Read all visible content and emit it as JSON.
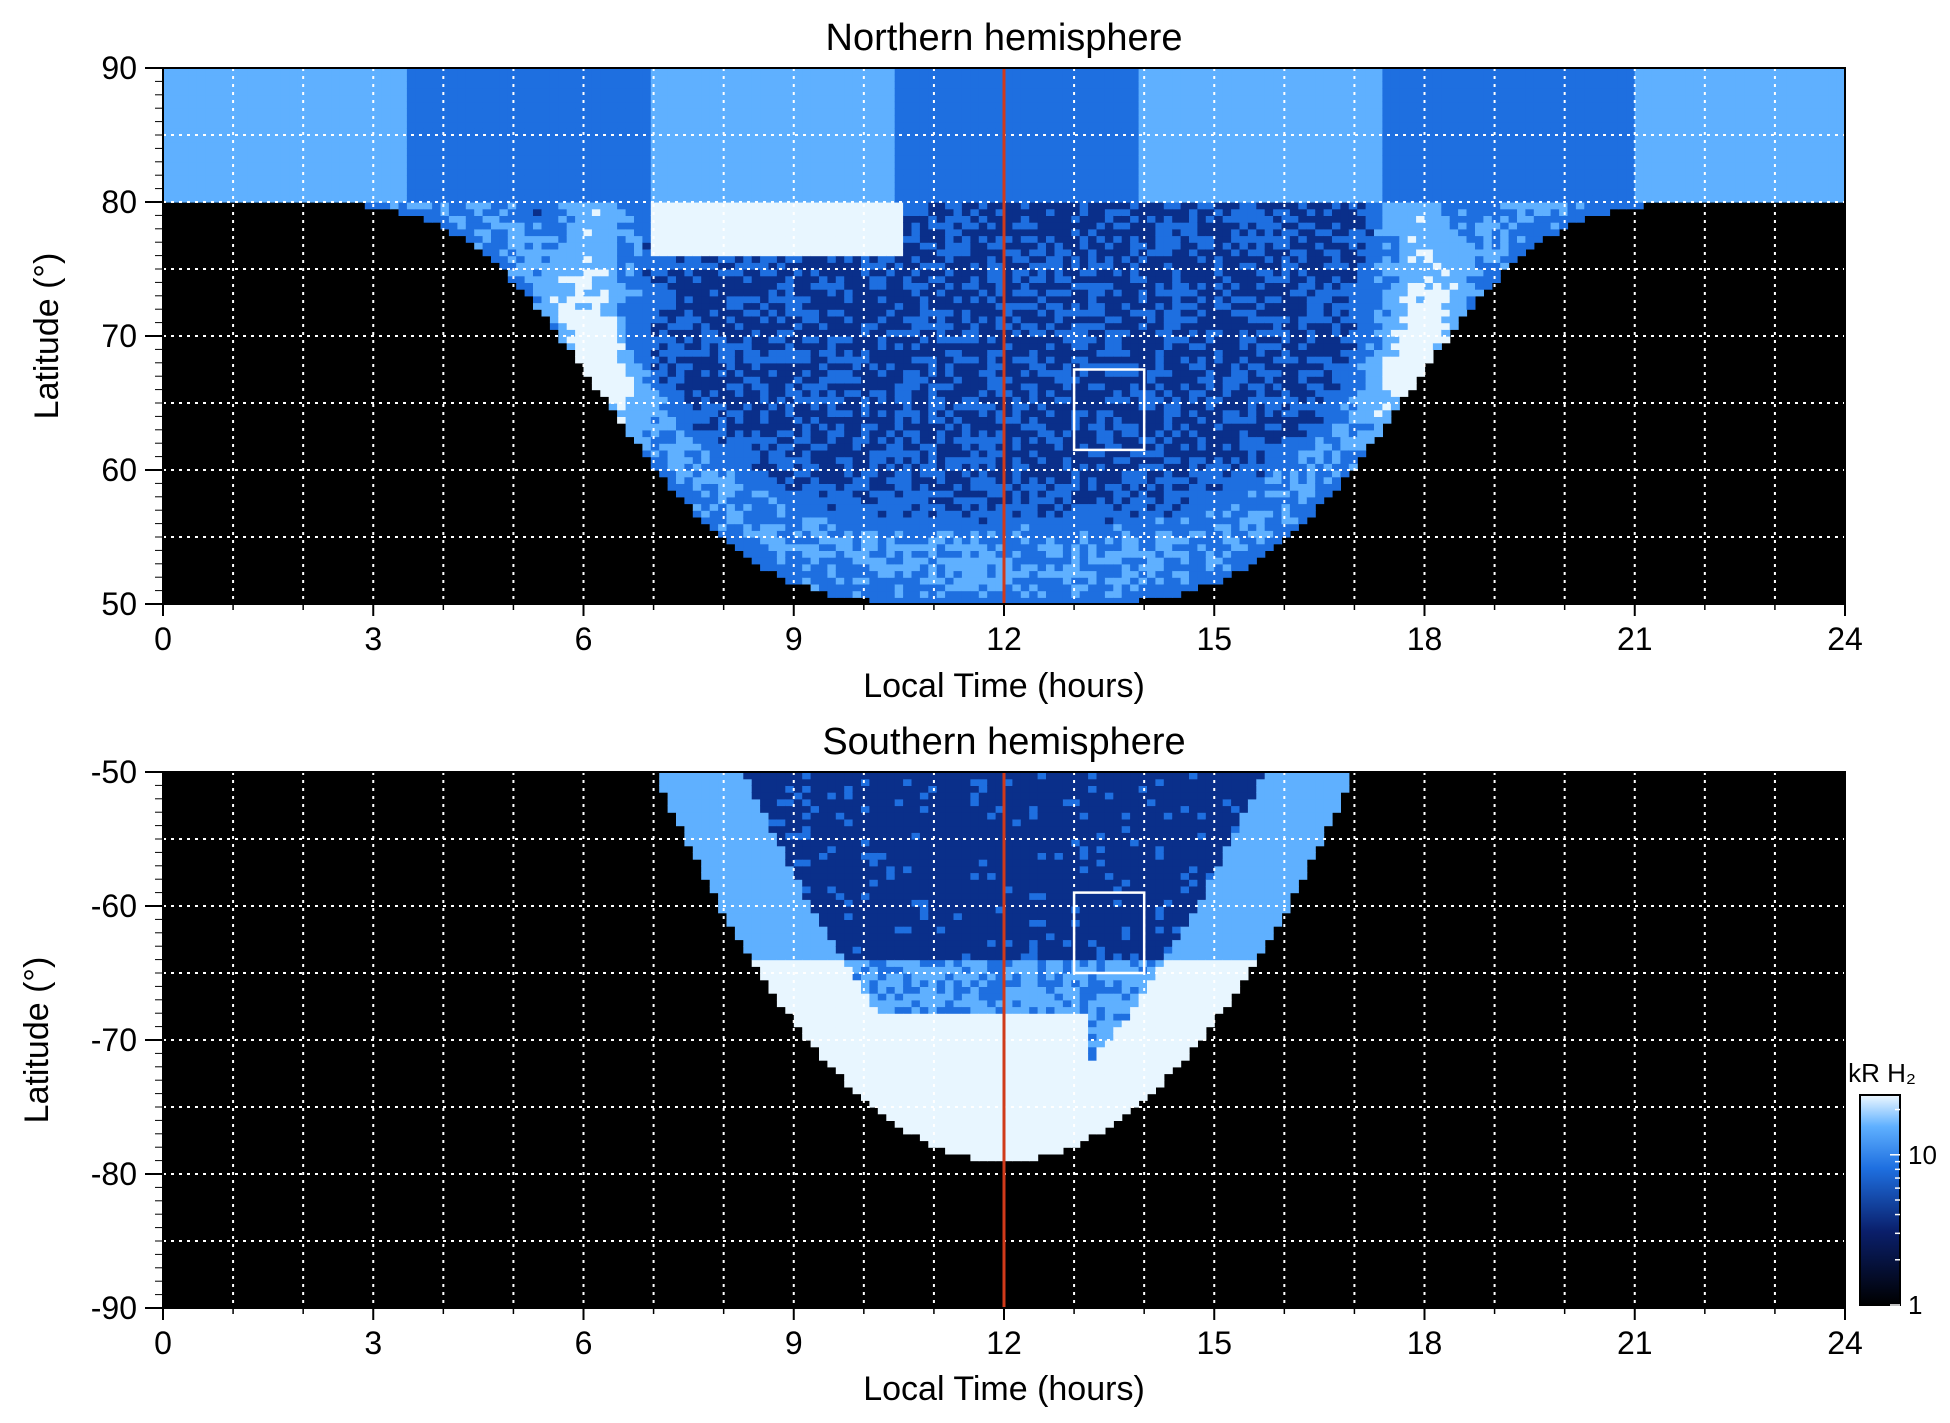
{
  "colors": {
    "background": "#000000",
    "aurora_dark": "#0a2f8a",
    "aurora_mid": "#1e6fe0",
    "aurora_light": "#5fb0ff",
    "aurora_bright": "#e8f6ff",
    "noon_line": "#d03a1a",
    "grid": "#ffffff",
    "box": "#ffffff"
  },
  "chart_data": [
    {
      "type": "heatmap",
      "title": "Northern hemisphere",
      "xlabel": "Local Time (hours)",
      "ylabel": "Latitude (°)",
      "xlim": [
        0,
        24
      ],
      "ylim": [
        50,
        90
      ],
      "x_ticks": [
        "0",
        "3",
        "6",
        "9",
        "12",
        "15",
        "18",
        "21",
        "24"
      ],
      "y_ticks": [
        "50",
        "60",
        "70",
        "80",
        "90"
      ],
      "grid": true,
      "grid_x_step": 1,
      "grid_y_step": 5,
      "noon_line_x": 12,
      "highlight_box": {
        "x": [
          13,
          14
        ],
        "y": [
          61.5,
          67.5
        ]
      },
      "aurora_bands": [
        {
          "description": "polar cap arc",
          "x_range": [
            0,
            24
          ],
          "lat_range": [
            80,
            90
          ]
        },
        {
          "description": "dawn band",
          "x_range": [
            4.5,
            7
          ],
          "lat_range": [
            50,
            80
          ]
        },
        {
          "description": "dusk band",
          "x_range": [
            17,
            19.5
          ],
          "lat_range": [
            50,
            80
          ]
        },
        {
          "description": "bright morning arc",
          "x_range": [
            7,
            10.5
          ],
          "lat_range": [
            76,
            82
          ]
        }
      ]
    },
    {
      "type": "heatmap",
      "title": "Southern hemisphere",
      "xlabel": "Local Time (hours)",
      "ylabel": "Latitude (°)",
      "xlim": [
        0,
        24
      ],
      "ylim": [
        -90,
        -50
      ],
      "x_ticks": [
        "0",
        "3",
        "6",
        "9",
        "12",
        "15",
        "18",
        "21",
        "24"
      ],
      "y_ticks": [
        "-50",
        "-60",
        "-70",
        "-80",
        "-90"
      ],
      "grid": true,
      "grid_x_step": 1,
      "grid_y_step": 5,
      "noon_line_x": 12,
      "highlight_box": {
        "x": [
          13,
          14
        ],
        "y": [
          -65,
          -59
        ]
      },
      "aurora_bands": [
        {
          "description": "U-shaped oval",
          "x_range": [
            7,
            17
          ],
          "lat_range": [
            -79,
            -50
          ]
        },
        {
          "description": "bright noon spot",
          "x_range": [
            10,
            13
          ],
          "lat_range": [
            -79,
            -68
          ]
        }
      ]
    }
  ],
  "colorbar": {
    "label": "kR H₂",
    "ticks": [
      "1",
      "10"
    ],
    "scale": "log",
    "range": [
      1,
      25
    ]
  }
}
